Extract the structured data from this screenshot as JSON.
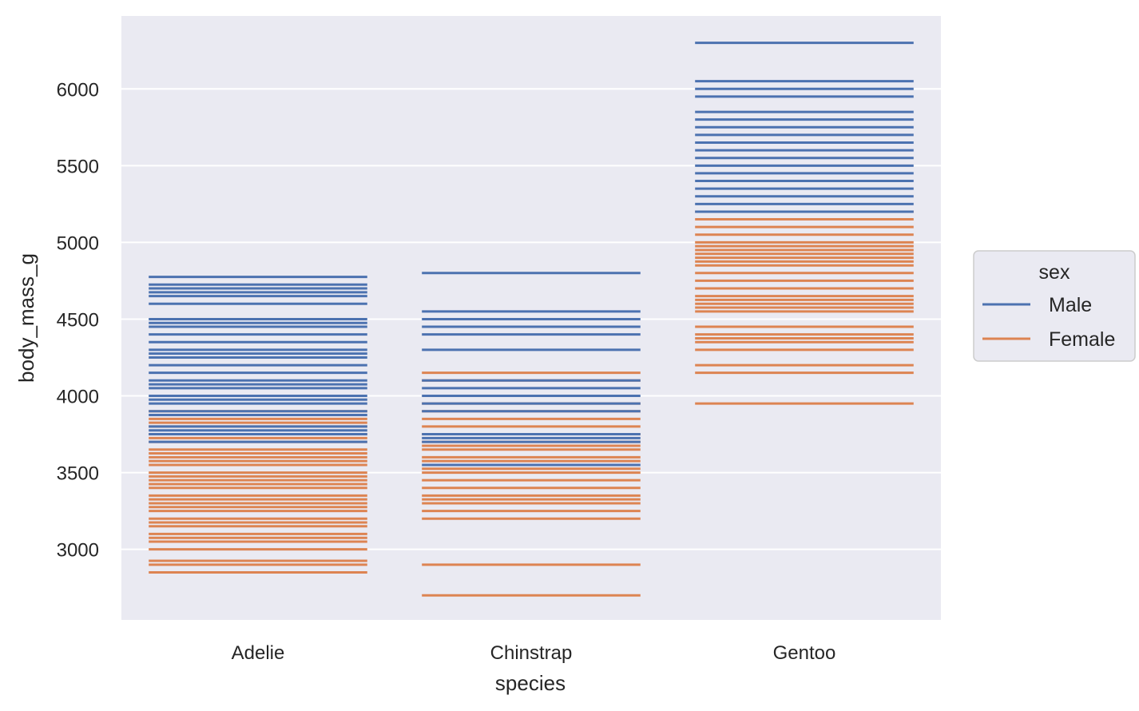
{
  "chart_data": {
    "type": "strip",
    "mark": "horizontal-dash",
    "xlabel": "species",
    "ylabel": "body_mass_g",
    "categories": [
      "Adelie",
      "Chinstrap",
      "Gentoo"
    ],
    "ylim": [
      2540,
      6475
    ],
    "yticks": [
      3000,
      3500,
      4000,
      4500,
      5000,
      5500,
      6000
    ],
    "grid": true,
    "background": "#eaeaf2",
    "legend": {
      "title": "sex",
      "placement": "right",
      "entries": [
        {
          "name": "Male",
          "color": "#4c72b0"
        },
        {
          "name": "Female",
          "color": "#dd8452"
        }
      ]
    },
    "series": [
      {
        "name": "Male",
        "color": "#4c72b0",
        "values": {
          "Adelie": [
            4775,
            4725,
            4700,
            4675,
            4650,
            4600,
            4500,
            4475,
            4450,
            4400,
            4350,
            4300,
            4275,
            4250,
            4200,
            4150,
            4100,
            4075,
            4050,
            4000,
            3975,
            3950,
            3900,
            3875,
            3800,
            3775,
            3750,
            3700
          ],
          "Chinstrap": [
            4800,
            4550,
            4500,
            4450,
            4400,
            4300,
            4100,
            4050,
            4000,
            3950,
            3900,
            3750,
            3725,
            3700,
            3550
          ],
          "Gentoo": [
            6300,
            6050,
            6000,
            5950,
            5850,
            5800,
            5750,
            5700,
            5650,
            5600,
            5550,
            5500,
            5450,
            5400,
            5350,
            5300,
            5250,
            5200
          ]
        }
      },
      {
        "name": "Female",
        "color": "#dd8452",
        "values": {
          "Adelie": [
            3900,
            3850,
            3825,
            3800,
            3750,
            3725,
            3700,
            3650,
            3625,
            3600,
            3575,
            3550,
            3500,
            3475,
            3450,
            3425,
            3400,
            3350,
            3325,
            3300,
            3275,
            3250,
            3200,
            3175,
            3150,
            3100,
            3075,
            3050,
            3000,
            2925,
            2900,
            2850
          ],
          "Chinstrap": [
            4150,
            4100,
            3950,
            3900,
            3850,
            3800,
            3750,
            3700,
            3675,
            3650,
            3600,
            3575,
            3525,
            3500,
            3450,
            3400,
            3350,
            3325,
            3300,
            3250,
            3200,
            2900,
            2700
          ],
          "Gentoo": [
            5200,
            5150,
            5100,
            5050,
            5000,
            4975,
            4950,
            4925,
            4900,
            4875,
            4850,
            4800,
            4750,
            4700,
            4650,
            4625,
            4600,
            4575,
            4550,
            4450,
            4400,
            4375,
            4350,
            4300,
            4200,
            4150,
            3950
          ]
        }
      }
    ]
  }
}
